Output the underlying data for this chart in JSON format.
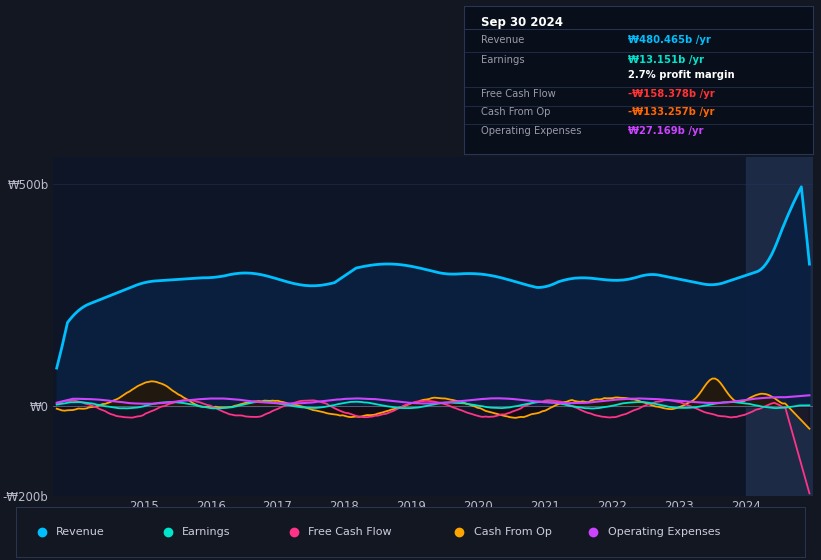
{
  "background_color": "#131722",
  "chart_bg": "#0d1526",
  "highlight_bg": "#1a2540",
  "title": "Sep 30 2024",
  "info_box": {
    "title": "Sep 30 2024",
    "rows": [
      {
        "label": "Revenue",
        "value": "₩480.465b /yr",
        "value_color": "#00bfff"
      },
      {
        "label": "Earnings",
        "value": "₩13.151b /yr",
        "value_color": "#00e5cc"
      },
      {
        "label": "",
        "value": "2.7% profit margin",
        "value_color": "#ffffff"
      },
      {
        "label": "Free Cash Flow",
        "value": "-₩158.378b /yr",
        "value_color": "#ff3333"
      },
      {
        "label": "Cash From Op",
        "value": "-₩133.257b /yr",
        "value_color": "#ff6600"
      },
      {
        "label": "Operating Expenses",
        "value": "₩27.169b /yr",
        "value_color": "#cc44ff"
      }
    ]
  },
  "ylim": [
    -200,
    560
  ],
  "yticks": [
    -200,
    0,
    500
  ],
  "ytick_labels": [
    "-₩200b",
    "₩0",
    "₩500b"
  ],
  "series": {
    "revenue": {
      "color": "#00bfff",
      "lw": 2.0,
      "fill_color": "#0a2040",
      "fill_alpha": 0.9
    },
    "earnings": {
      "color": "#00e5cc",
      "lw": 1.3
    },
    "fcf": {
      "color": "#ff3388",
      "lw": 1.3
    },
    "cfop": {
      "color": "#ffa500",
      "lw": 1.3,
      "fill_color": "#2a1800",
      "fill_alpha": 0.7
    },
    "opex": {
      "color": "#cc44ff",
      "lw": 1.5
    }
  },
  "legend": [
    {
      "label": "Revenue",
      "color": "#00bfff"
    },
    {
      "label": "Earnings",
      "color": "#00e5cc"
    },
    {
      "label": "Free Cash Flow",
      "color": "#ff3388"
    },
    {
      "label": "Cash From Op",
      "color": "#ffa500"
    },
    {
      "label": "Operating Expenses",
      "color": "#cc44ff"
    }
  ]
}
